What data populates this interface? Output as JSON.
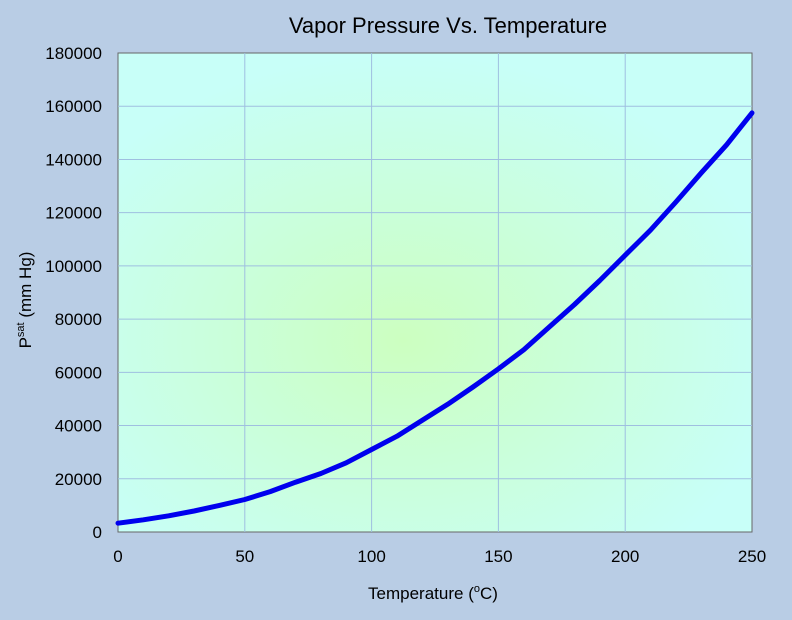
{
  "chart_data": {
    "type": "line",
    "title": "Vapor Pressure Vs. Temperature",
    "xlabel": "Temperature",
    "xlabel_unit_open": "(",
    "xlabel_unit_sup": "o",
    "xlabel_unit_rest": "C)",
    "ylabel_main": "P",
    "ylabel_sup": "sat",
    "ylabel_rest": " (mm Hg)",
    "xlim": [
      0,
      250
    ],
    "ylim": [
      0,
      180000
    ],
    "x_ticks": [
      "0",
      "50",
      "100",
      "150",
      "200",
      "250"
    ],
    "y_ticks": [
      "0",
      "20000",
      "40000",
      "60000",
      "80000",
      "100000",
      "120000",
      "140000",
      "160000",
      "180000"
    ],
    "grid": true,
    "line_color": "#0000ee",
    "plot_bg_center": "#ccffc0",
    "plot_bg_edge": "#c8fff8",
    "series": [
      {
        "x": [
          0,
          10,
          20,
          30,
          40,
          50,
          60,
          70,
          80,
          90,
          100,
          110,
          120,
          130,
          140,
          150,
          160,
          170,
          180,
          190,
          200,
          210,
          220,
          230,
          240,
          250
        ],
        "y": [
          3300,
          4600,
          6100,
          7900,
          10000,
          12200,
          15200,
          18700,
          22000,
          26000,
          31000,
          36000,
          42000,
          48000,
          54500,
          61300,
          68500,
          77000,
          85500,
          94500,
          104000,
          113500,
          124000,
          135000,
          145500,
          157500
        ]
      }
    ]
  }
}
